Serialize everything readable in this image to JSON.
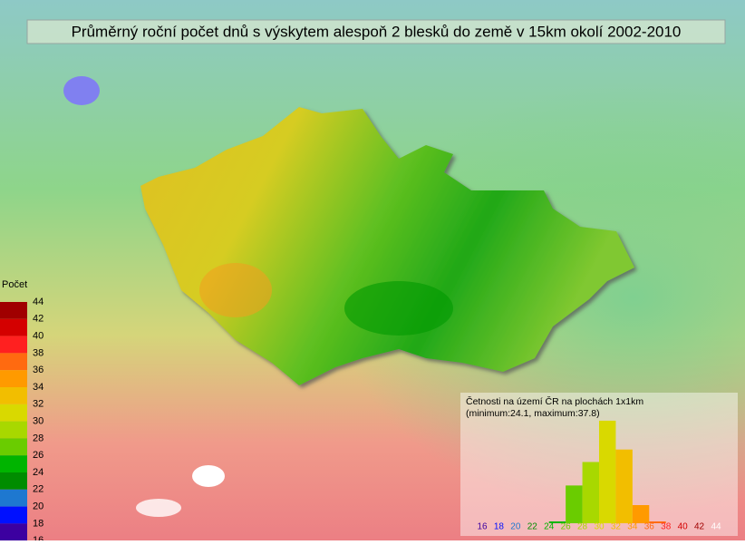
{
  "title": "Průměrný roční počet dnů s výskytem alespoň 2 blesků do země v 15km okolí 2002-2010",
  "legend": {
    "title": "Počet",
    "ticks": [
      44,
      42,
      40,
      38,
      36,
      34,
      32,
      30,
      28,
      26,
      24,
      22,
      20,
      18,
      16
    ],
    "colors": [
      "#a00000",
      "#d40000",
      "#ff2020",
      "#ff6a10",
      "#ff9a00",
      "#f2be00",
      "#d9d900",
      "#a8d800",
      "#6acc00",
      "#00b400",
      "#008c00",
      "#1e78d0",
      "#0010ff",
      "#3c00a0"
    ]
  },
  "chart_data": {
    "type": "histogram",
    "title": "Četnosti na území ČR na plochách 1x1km",
    "subtitle": "(minimum:24.1, maximum:37.8)",
    "bins": [
      16,
      18,
      20,
      22,
      24,
      26,
      28,
      30,
      32,
      34,
      36,
      38,
      40,
      42,
      44
    ],
    "values": [
      0,
      0,
      0,
      0,
      0.6,
      12.7,
      20.6,
      34.5,
      24.8,
      6.1,
      0.6,
      0,
      0,
      0
    ],
    "ylim": [
      0,
      36
    ]
  }
}
